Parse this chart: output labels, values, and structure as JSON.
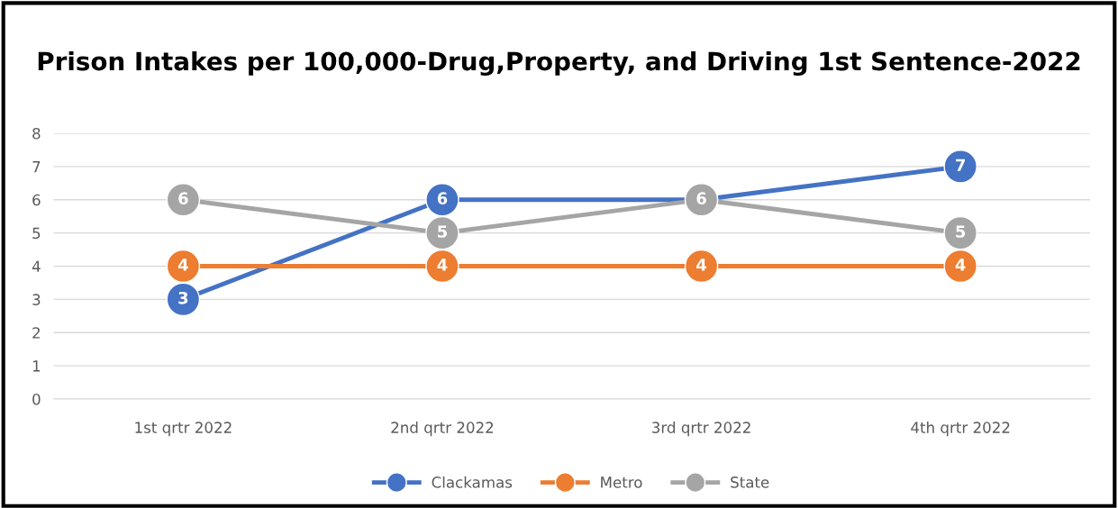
{
  "chart_data": {
    "type": "line",
    "title": "Prison Intakes per 100,000-Drug,Property, and Driving 1st Sentence-2022",
    "categories": [
      "1st qrtr 2022",
      "2nd qrtr 2022",
      "3rd qrtr 2022",
      "4th qrtr 2022"
    ],
    "series": [
      {
        "name": "Clackamas",
        "color": "#4472c4",
        "values": [
          3,
          6,
          6,
          7
        ],
        "value_labels": [
          "3",
          "6",
          null,
          "7"
        ]
      },
      {
        "name": "Metro",
        "color": "#ed7d31",
        "values": [
          4,
          4,
          4,
          4
        ],
        "value_labels": [
          "4",
          "4",
          "4",
          "4"
        ]
      },
      {
        "name": "State",
        "color": "#a5a5a5",
        "values": [
          6,
          5,
          6,
          5
        ],
        "value_labels": [
          "6",
          "5",
          "6",
          "5"
        ]
      }
    ],
    "ylim": [
      0,
      8
    ],
    "yticks": [
      0,
      1,
      2,
      3,
      4,
      5,
      6,
      7,
      8
    ],
    "grid": "y",
    "legend": "bottom",
    "marker": "circle",
    "line_style": "solid"
  }
}
